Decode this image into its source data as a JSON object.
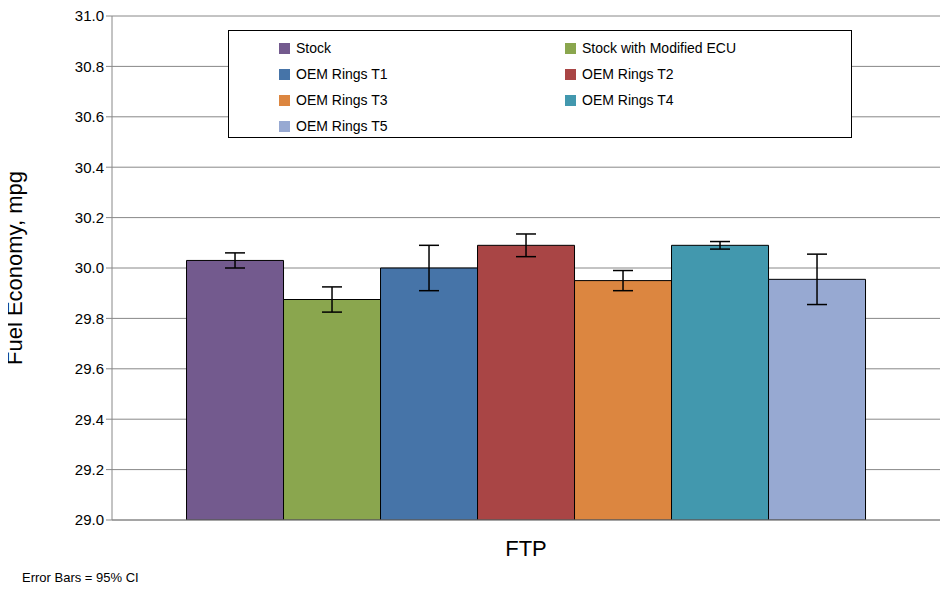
{
  "chart_data": {
    "type": "bar",
    "categories": [
      "FTP"
    ],
    "ylabel": "Fuel Economy, mpg",
    "annotations": [
      "Error Bars = 95% CI"
    ],
    "series": [
      {
        "name": "Stock",
        "color": "#735a8e",
        "values": [
          30.03
        ],
        "error": [
          0.03
        ]
      },
      {
        "name": "Stock with Modified ECU",
        "color": "#8aa64e",
        "values": [
          29.875
        ],
        "error": [
          0.05
        ]
      },
      {
        "name": "OEM Rings T1",
        "color": "#4674a8",
        "values": [
          30.0
        ],
        "error": [
          0.09
        ]
      },
      {
        "name": "OEM Rings T2",
        "color": "#a94545",
        "values": [
          30.09
        ],
        "error": [
          0.045
        ]
      },
      {
        "name": "OEM Rings T3",
        "color": "#dc8640",
        "values": [
          29.95
        ],
        "error": [
          0.04
        ]
      },
      {
        "name": "OEM Rings T4",
        "color": "#4298ae",
        "values": [
          30.09
        ],
        "error": [
          0.015
        ]
      },
      {
        "name": "OEM Rings T5",
        "color": "#97a9d2",
        "values": [
          29.955
        ],
        "error": [
          0.1
        ]
      }
    ],
    "ylim": [
      29,
      31
    ],
    "yticks": [
      {
        "value": 29,
        "label": "29.0"
      },
      29.2,
      29.4,
      29.6,
      29.8,
      {
        "value": 30,
        "label": "30.0"
      },
      30.2,
      30.4,
      30.6,
      30.8,
      {
        "value": 31,
        "label": "31.0"
      }
    ],
    "grid": true,
    "legend": "top"
  }
}
